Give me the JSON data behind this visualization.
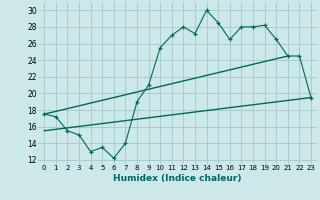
{
  "xlabel": "Humidex (Indice chaleur)",
  "bg_color": "#cce8e8",
  "line_color": "#006666",
  "grid_color": "#aacccc",
  "xlim": [
    -0.5,
    23.5
  ],
  "ylim": [
    11.5,
    31
  ],
  "yticks": [
    12,
    14,
    16,
    18,
    20,
    22,
    24,
    26,
    28,
    30
  ],
  "xticks": [
    0,
    1,
    2,
    3,
    4,
    5,
    6,
    7,
    8,
    9,
    10,
    11,
    12,
    13,
    14,
    15,
    16,
    17,
    18,
    19,
    20,
    21,
    22,
    23
  ],
  "jagged_x": [
    0,
    1,
    2,
    3,
    4,
    5,
    6,
    7,
    8,
    9,
    10,
    11,
    12,
    13,
    14,
    15,
    16,
    17,
    18,
    19,
    20,
    21,
    22,
    23
  ],
  "jagged_y": [
    17.5,
    17.2,
    15.5,
    15.0,
    13.0,
    13.5,
    12.2,
    14.0,
    19.0,
    21.0,
    25.5,
    27.0,
    28.0,
    27.2,
    30.0,
    28.5,
    26.5,
    28.0,
    28.0,
    28.2,
    26.5,
    24.5,
    24.5,
    19.5
  ],
  "upper_line_x": [
    0,
    21
  ],
  "upper_line_y": [
    17.5,
    24.5
  ],
  "lower_line_x": [
    0,
    23
  ],
  "lower_line_y": [
    15.5,
    19.5
  ]
}
